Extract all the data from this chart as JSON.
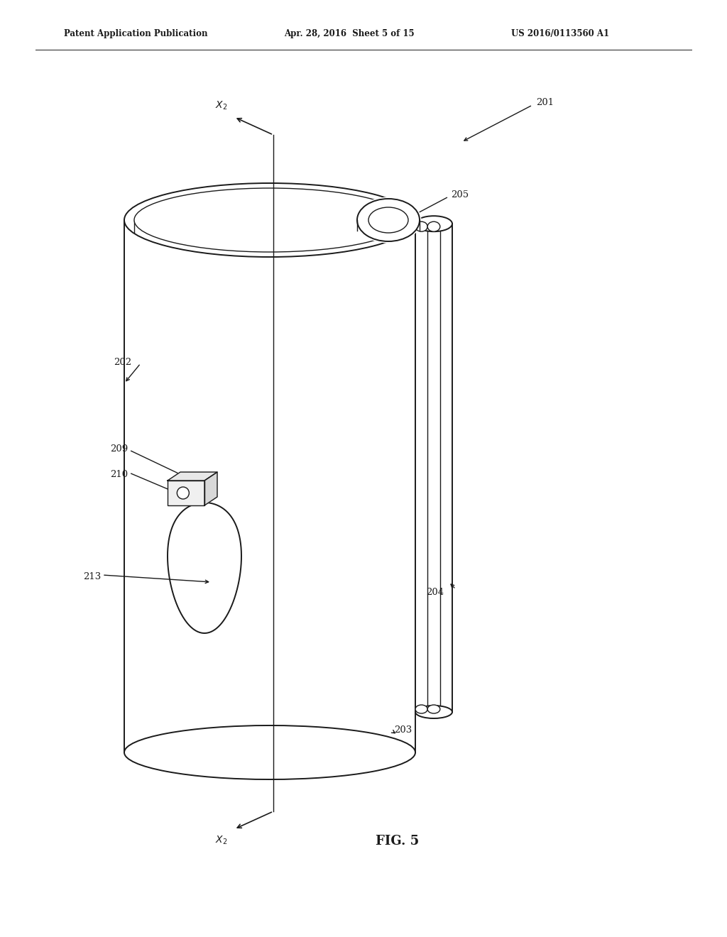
{
  "header_left": "Patent Application Publication",
  "header_mid": "Apr. 28, 2016  Sheet 5 of 15",
  "header_right": "US 2016/0113560 A1",
  "fig_label": "FIG. 5",
  "bg_color": "#ffffff",
  "line_color": "#1a1a1a"
}
